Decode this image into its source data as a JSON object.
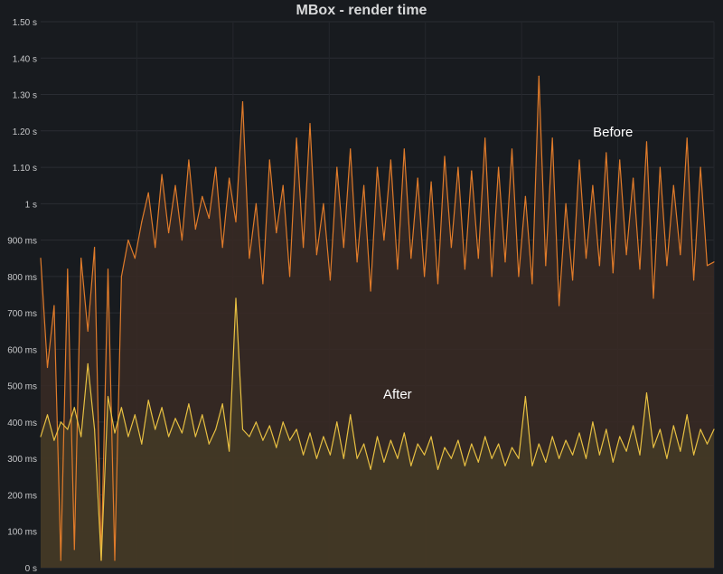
{
  "panel": {
    "title": "MBox - render time"
  },
  "chart_data": {
    "type": "area",
    "title": "MBox - render time",
    "xlabel": "",
    "ylabel": "",
    "y_unit": "s",
    "ylim": [
      0,
      1.5
    ],
    "y_ticks": [
      {
        "value": 0,
        "label": "0 s"
      },
      {
        "value": 0.1,
        "label": "100 ms"
      },
      {
        "value": 0.2,
        "label": "200 ms"
      },
      {
        "value": 0.3,
        "label": "300 ms"
      },
      {
        "value": 0.4,
        "label": "400 ms"
      },
      {
        "value": 0.5,
        "label": "500 ms"
      },
      {
        "value": 0.6,
        "label": "600 ms"
      },
      {
        "value": 0.7,
        "label": "700 ms"
      },
      {
        "value": 0.8,
        "label": "800 ms"
      },
      {
        "value": 0.9,
        "label": "900 ms"
      },
      {
        "value": 1.0,
        "label": "1 s"
      },
      {
        "value": 1.1,
        "label": "1.10 s"
      },
      {
        "value": 1.2,
        "label": "1.20 s"
      },
      {
        "value": 1.3,
        "label": "1.30 s"
      },
      {
        "value": 1.4,
        "label": "1.40 s"
      },
      {
        "value": 1.5,
        "label": "1.50 s"
      }
    ],
    "grid": true,
    "legend": "none",
    "x_range": [
      0,
      100
    ],
    "annotations": [
      {
        "text": "Before",
        "x": 85,
        "y": 1.185
      },
      {
        "text": "After",
        "x": 53,
        "y": 0.465
      }
    ],
    "series": [
      {
        "color": "#e07b2a",
        "fill": "#3a2a25",
        "x": [
          0,
          1,
          2,
          3,
          4,
          5,
          6,
          7,
          8,
          9,
          10,
          11,
          12,
          13,
          14,
          15,
          16,
          17,
          18,
          19,
          20,
          21,
          22,
          23,
          24,
          25,
          26,
          27,
          28,
          29,
          30,
          31,
          32,
          33,
          34,
          35,
          36,
          37,
          38,
          39,
          40,
          41,
          42,
          43,
          44,
          45,
          46,
          47,
          48,
          49,
          50,
          51,
          52,
          53,
          54,
          55,
          56,
          57,
          58,
          59,
          60,
          61,
          62,
          63,
          64,
          65,
          66,
          67,
          68,
          69,
          70,
          71,
          72,
          73,
          74,
          75,
          76,
          77,
          78,
          79,
          80,
          81,
          82,
          83,
          84,
          85,
          86,
          87,
          88,
          89,
          90,
          91,
          92,
          93,
          94,
          95,
          96,
          97,
          98,
          99,
          100
        ],
        "values": [
          0.85,
          0.55,
          0.72,
          0.02,
          0.82,
          0.05,
          0.85,
          0.65,
          0.88,
          0.02,
          0.82,
          0.02,
          0.8,
          0.9,
          0.85,
          0.95,
          1.03,
          0.88,
          1.08,
          0.92,
          1.05,
          0.9,
          1.12,
          0.93,
          1.02,
          0.96,
          1.1,
          0.88,
          1.07,
          0.95,
          1.28,
          0.85,
          1.0,
          0.78,
          1.12,
          0.92,
          1.05,
          0.8,
          1.18,
          0.88,
          1.22,
          0.86,
          1.0,
          0.79,
          1.1,
          0.88,
          1.15,
          0.84,
          1.05,
          0.76,
          1.1,
          0.9,
          1.12,
          0.82,
          1.15,
          0.85,
          1.07,
          0.8,
          1.06,
          0.78,
          1.13,
          0.88,
          1.1,
          0.82,
          1.09,
          0.85,
          1.18,
          0.8,
          1.1,
          0.84,
          1.15,
          0.8,
          1.02,
          0.78,
          1.35,
          0.83,
          1.18,
          0.72,
          1.0,
          0.79,
          1.12,
          0.85,
          1.05,
          0.83,
          1.14,
          0.81,
          1.12,
          0.86,
          1.07,
          0.82,
          1.17,
          0.74,
          1.1,
          0.83,
          1.05,
          0.86,
          1.18,
          0.79,
          1.1,
          0.83,
          0.84
        ]
      },
      {
        "color": "#e8c042",
        "fill": "#443a26",
        "x": [
          0,
          1,
          2,
          3,
          4,
          5,
          6,
          7,
          8,
          9,
          10,
          11,
          12,
          13,
          14,
          15,
          16,
          17,
          18,
          19,
          20,
          21,
          22,
          23,
          24,
          25,
          26,
          27,
          28,
          29,
          30,
          31,
          32,
          33,
          34,
          35,
          36,
          37,
          38,
          39,
          40,
          41,
          42,
          43,
          44,
          45,
          46,
          47,
          48,
          49,
          50,
          51,
          52,
          53,
          54,
          55,
          56,
          57,
          58,
          59,
          60,
          61,
          62,
          63,
          64,
          65,
          66,
          67,
          68,
          69,
          70,
          71,
          72,
          73,
          74,
          75,
          76,
          77,
          78,
          79,
          80,
          81,
          82,
          83,
          84,
          85,
          86,
          87,
          88,
          89,
          90,
          91,
          92,
          93,
          94,
          95,
          96,
          97,
          98,
          99,
          100
        ],
        "values": [
          0.36,
          0.42,
          0.35,
          0.4,
          0.38,
          0.44,
          0.36,
          0.56,
          0.38,
          0.02,
          0.47,
          0.37,
          0.44,
          0.36,
          0.42,
          0.34,
          0.46,
          0.38,
          0.44,
          0.36,
          0.41,
          0.37,
          0.45,
          0.36,
          0.42,
          0.34,
          0.38,
          0.45,
          0.32,
          0.74,
          0.38,
          0.36,
          0.4,
          0.35,
          0.39,
          0.33,
          0.4,
          0.35,
          0.38,
          0.31,
          0.37,
          0.3,
          0.36,
          0.31,
          0.4,
          0.3,
          0.42,
          0.3,
          0.34,
          0.27,
          0.36,
          0.29,
          0.35,
          0.3,
          0.37,
          0.28,
          0.34,
          0.31,
          0.36,
          0.27,
          0.33,
          0.3,
          0.35,
          0.28,
          0.34,
          0.29,
          0.36,
          0.3,
          0.34,
          0.28,
          0.33,
          0.3,
          0.47,
          0.28,
          0.34,
          0.29,
          0.36,
          0.3,
          0.35,
          0.31,
          0.37,
          0.3,
          0.4,
          0.31,
          0.38,
          0.29,
          0.36,
          0.32,
          0.39,
          0.31,
          0.48,
          0.33,
          0.38,
          0.3,
          0.39,
          0.32,
          0.42,
          0.31,
          0.38,
          0.34,
          0.38
        ]
      }
    ]
  }
}
